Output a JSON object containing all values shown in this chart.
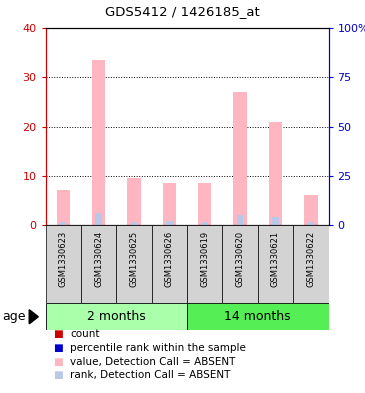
{
  "title": "GDS5412 / 1426185_at",
  "samples": [
    "GSM1330623",
    "GSM1330624",
    "GSM1330625",
    "GSM1330626",
    "GSM1330619",
    "GSM1330620",
    "GSM1330621",
    "GSM1330622"
  ],
  "absent_value": [
    7.0,
    33.5,
    9.5,
    8.5,
    8.5,
    27.0,
    21.0,
    6.0
  ],
  "absent_rank": [
    1.5,
    6.0,
    1.5,
    2.0,
    1.5,
    5.0,
    4.0,
    1.5
  ],
  "ylim_left": [
    0,
    40
  ],
  "ylim_right": [
    0,
    100
  ],
  "yticks_left": [
    0,
    10,
    20,
    30,
    40
  ],
  "yticks_right": [
    0,
    25,
    50,
    75,
    100
  ],
  "ytick_labels_right": [
    "0",
    "25",
    "50",
    "75",
    "100%"
  ],
  "color_absent_value": "#FFB6C1",
  "color_absent_rank": "#B8C8E8",
  "color_count": "#CC0000",
  "color_rank": "#0000CC",
  "left_axis_color": "#CC0000",
  "right_axis_color": "#0000CC",
  "bg_sample_row": "#D3D3D3",
  "group0_color": "#AAFFAA",
  "group1_color": "#55EE55",
  "group0_label": "2 months",
  "group1_label": "14 months",
  "age_label": "age"
}
